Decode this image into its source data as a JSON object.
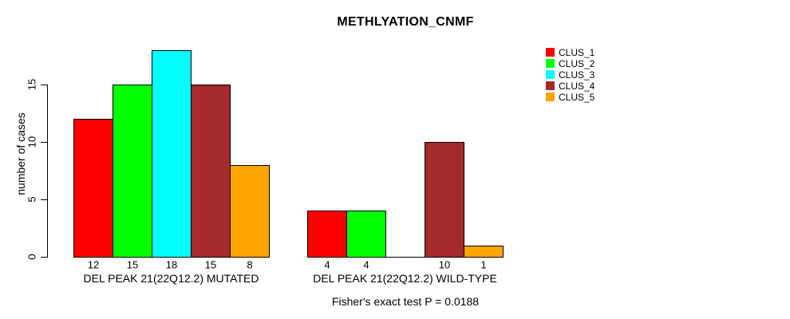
{
  "chart_data": {
    "type": "bar",
    "title": "METHLYATION_CNMF",
    "ylabel": "number of cases",
    "xlabel": "",
    "ylim": [
      0,
      18
    ],
    "yticks": [
      0,
      5,
      10,
      15
    ],
    "grid": false,
    "legend_position": "right-top",
    "series": [
      {
        "name": "CLUS_1",
        "color": "#ff0000"
      },
      {
        "name": "CLUS_2",
        "color": "#00ff00"
      },
      {
        "name": "CLUS_3",
        "color": "#00ffff"
      },
      {
        "name": "CLUS_4",
        "color": "#a52a2a"
      },
      {
        "name": "CLUS_5",
        "color": "#ffa500"
      }
    ],
    "groups": [
      {
        "label": "DEL PEAK 21(22Q12.2) MUTATED",
        "values": [
          12,
          15,
          18,
          15,
          8
        ],
        "bar_labels": [
          "12",
          "15",
          "18",
          "15",
          "8"
        ]
      },
      {
        "label": "DEL PEAK 21(22Q12.2) WILD-TYPE",
        "values": [
          4,
          4,
          0,
          10,
          1
        ],
        "bar_labels": [
          "4",
          "4",
          "",
          "10",
          "1"
        ]
      }
    ],
    "annotation": "Fisher's exact test P = 0.0188"
  }
}
